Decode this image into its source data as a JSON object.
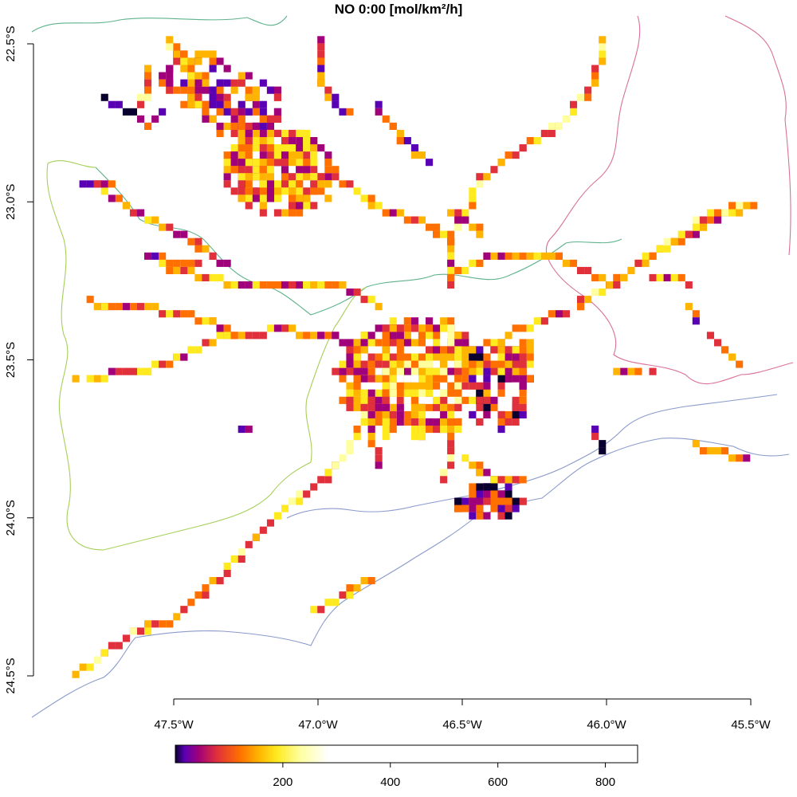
{
  "title": "NO 0:00 [mol/km²/h]",
  "map": {
    "lon_range": [
      -47.5,
      -45.5
    ],
    "lat_range": [
      -24.5,
      -22.5
    ],
    "x_ticks": [
      {
        "value": -47.5,
        "label": "47.5°W"
      },
      {
        "value": -47.0,
        "label": "47.0°W"
      },
      {
        "value": -46.5,
        "label": "46.5°W"
      },
      {
        "value": -46.0,
        "label": "46.0°W"
      },
      {
        "value": -45.5,
        "label": "45.5°W"
      }
    ],
    "y_ticks": [
      {
        "value": -22.5,
        "label": "22.5°S"
      },
      {
        "value": -23.0,
        "label": "23.0°S"
      },
      {
        "value": -23.5,
        "label": "23.5°S"
      },
      {
        "value": -24.0,
        "label": "24.0°S"
      },
      {
        "value": -24.5,
        "label": "24.5°S"
      }
    ],
    "colormap": [
      "#0a0030",
      "#5a00b4",
      "#a0007a",
      "#e0303c",
      "#ff7000",
      "#ffb400",
      "#ffea20",
      "#ffffa0",
      "#ffffff"
    ],
    "boundary_colors": {
      "west": "#a6cf5a",
      "north": "#5fb38a",
      "east": "#d9709a",
      "coast": "#8a9acb"
    }
  },
  "legend": {
    "ticks": [
      {
        "value": 200,
        "label": "200"
      },
      {
        "value": 400,
        "label": "400"
      },
      {
        "value": 600,
        "label": "600"
      },
      {
        "value": 800,
        "label": "800"
      }
    ],
    "range": [
      0,
      860
    ]
  }
}
